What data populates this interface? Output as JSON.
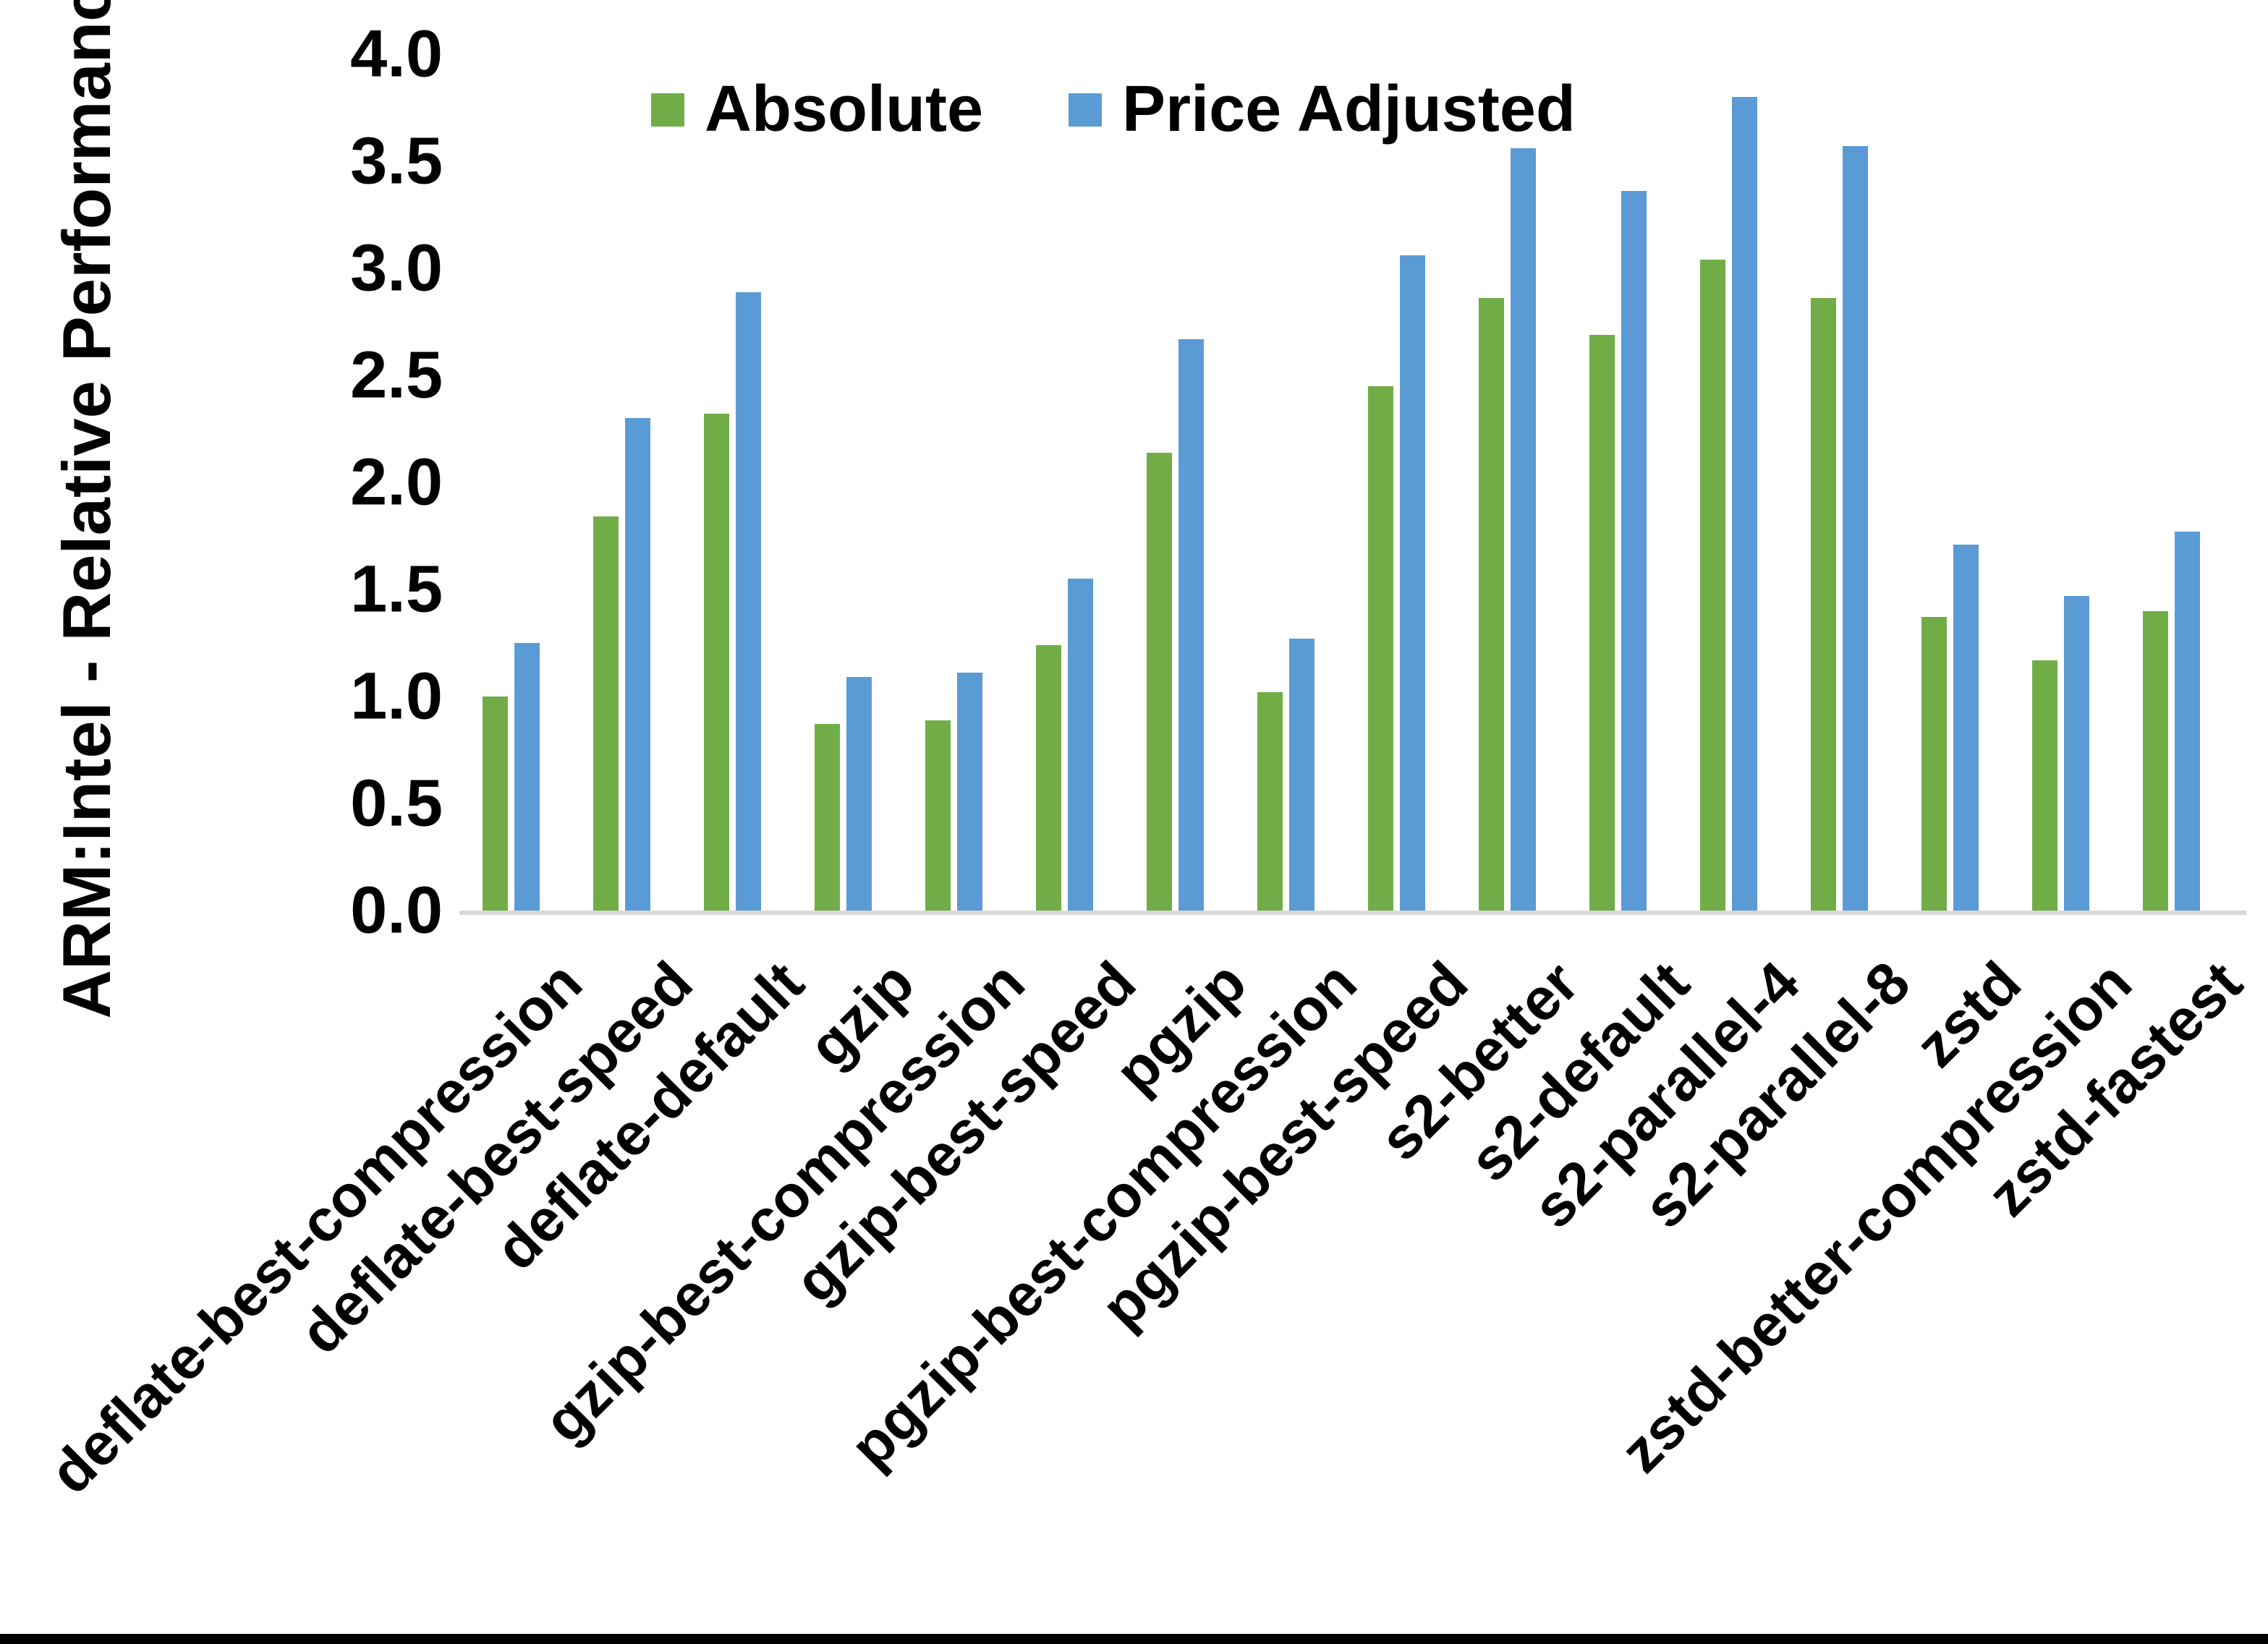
{
  "chart": {
    "y_axis_title": "ARM:Intel - Relative Performance",
    "y_ticks": [
      "4.0",
      "3.5",
      "3.0",
      "2.5",
      "2.0",
      "1.5",
      "1.0",
      "0.5",
      "0.0"
    ],
    "colors": {
      "absolute_green": "#70AD47",
      "price_adjusted_blue": "#5B9BD5",
      "axis_line_gray": "#D9D9D9",
      "text_black": "#000000"
    }
  },
  "legend": {
    "items": [
      {
        "label": "Absolute",
        "color": "#70AD47"
      },
      {
        "label": "Price Adjusted",
        "color": "#5B9BD5"
      }
    ]
  },
  "chart_data": {
    "type": "bar",
    "title": "",
    "xlabel": "",
    "ylabel": "ARM:Intel - Relative Performance",
    "ylim": [
      0.0,
      4.0
    ],
    "ytick_step": 0.5,
    "grid": false,
    "legend_position": "top-center",
    "categories": [
      "deflate-best-compression",
      "deflate-best-speed",
      "deflate-default",
      "gzip",
      "gzip-best-compression",
      "gzip-best-speed",
      "pgzip",
      "pgzip-best-compression",
      "pgzip-best-speed",
      "s2-better",
      "s2-default",
      "s2-parallel-4",
      "s2-parallel-8",
      "zstd",
      "zstd-better-compression",
      "zstd-fastest"
    ],
    "series": [
      {
        "name": "Absolute",
        "color": "#70AD47",
        "values": [
          1.0,
          1.84,
          2.32,
          0.87,
          0.89,
          1.24,
          2.14,
          1.02,
          2.45,
          2.86,
          2.69,
          3.04,
          2.86,
          1.37,
          1.17,
          1.4
        ]
      },
      {
        "name": "Price Adjusted",
        "color": "#5B9BD5",
        "values": [
          1.25,
          2.3,
          2.89,
          1.09,
          1.11,
          1.55,
          2.67,
          1.27,
          3.06,
          3.56,
          3.36,
          3.8,
          3.57,
          1.71,
          1.47,
          1.77
        ]
      }
    ]
  }
}
